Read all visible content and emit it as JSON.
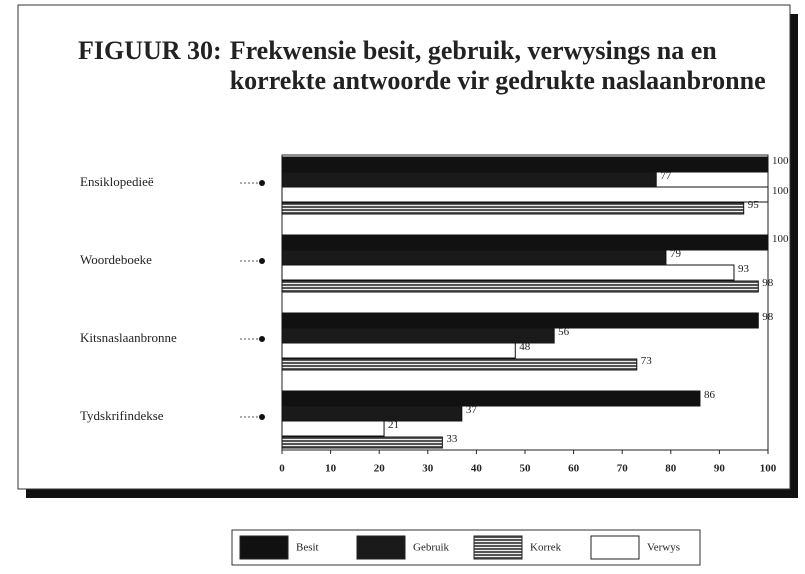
{
  "chart_data": {
    "type": "bar",
    "orientation": "horizontal",
    "figure_label": "FIGUUR 30:",
    "title": "Frekwensie besit, gebruik, verwysings na en korrekte antwoorde vir gedrukte naslaanbronne",
    "categories": [
      "Ensiklopedieë",
      "Woordeboeke",
      "Kitsnaslaanbronne",
      "Tydskrifindekse"
    ],
    "series": [
      {
        "name": "Besit",
        "color": "#111111",
        "values": [
          100,
          100,
          98,
          86
        ]
      },
      {
        "name": "Gebruik",
        "color": "#1a1a1a",
        "values": [
          77,
          79,
          56,
          37
        ]
      },
      {
        "name": "Korrek",
        "color": "#555555",
        "hatched": true,
        "values": [
          95,
          98,
          73,
          33
        ]
      },
      {
        "name": "Verwys",
        "color": "#ffffff",
        "values": [
          100,
          93,
          48,
          21
        ]
      }
    ],
    "xlim": [
      0,
      100
    ],
    "xticks": [
      0,
      10,
      20,
      30,
      40,
      50,
      60,
      70,
      80,
      90,
      100
    ],
    "legend": "bottom"
  }
}
